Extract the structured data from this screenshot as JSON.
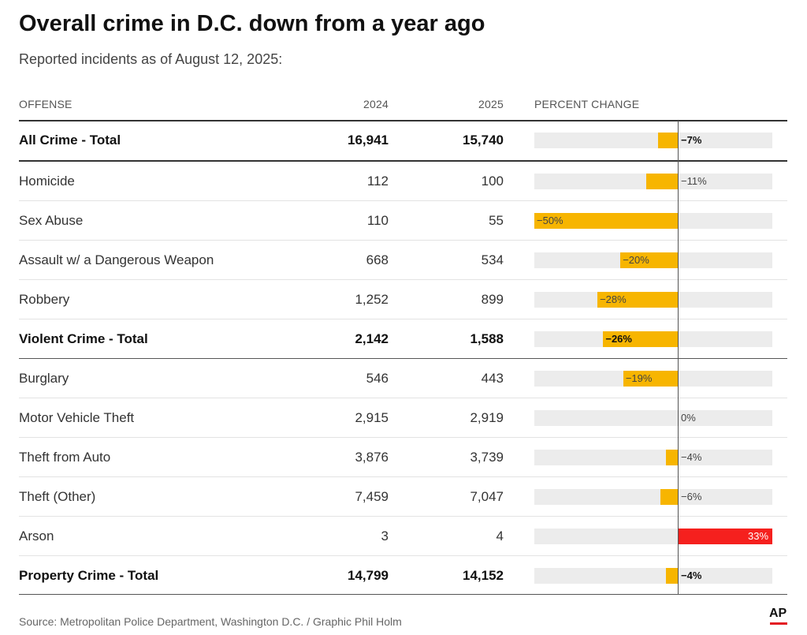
{
  "title": "Overall crime in D.C. down from a year ago",
  "subtitle": "Reported incidents as of August 12, 2025:",
  "headers": {
    "offense": "OFFENSE",
    "y2024": "2024",
    "y2025": "2025",
    "pct": "PERCENT CHANGE"
  },
  "source": "Source: Metropolitan Police Department, Washington D.C. / Graphic Phil Holm",
  "logo_text": "AP",
  "colors": {
    "negative_bar": "#f7b500",
    "positive_bar": "#f5201e",
    "track": "#ececec"
  },
  "chart_data": {
    "type": "table",
    "title": "Overall crime in D.C. down from a year ago",
    "subtitle": "Reported incidents as of August 12, 2025:",
    "columns": [
      "OFFENSE",
      "2024",
      "2025",
      "PERCENT CHANGE"
    ],
    "pct_range": [
      -50,
      33
    ],
    "rows": [
      {
        "offense": "All Crime - Total",
        "y2024": "16,941",
        "y2025": "15,740",
        "pct": -7,
        "pct_label": "−7%",
        "bold": true
      },
      {
        "offense": "Homicide",
        "y2024": "112",
        "y2025": "100",
        "pct": -11,
        "pct_label": "−11%",
        "bold": false
      },
      {
        "offense": "Sex Abuse",
        "y2024": "110",
        "y2025": "55",
        "pct": -50,
        "pct_label": "−50%",
        "bold": false
      },
      {
        "offense": "Assault w/ a Dangerous Weapon",
        "y2024": "668",
        "y2025": "534",
        "pct": -20,
        "pct_label": "−20%",
        "bold": false
      },
      {
        "offense": "Robbery",
        "y2024": "1,252",
        "y2025": "899",
        "pct": -28,
        "pct_label": "−28%",
        "bold": false
      },
      {
        "offense": "Violent Crime - Total",
        "y2024": "2,142",
        "y2025": "1,588",
        "pct": -26,
        "pct_label": "−26%",
        "bold": true
      },
      {
        "offense": "Burglary",
        "y2024": "546",
        "y2025": "443",
        "pct": -19,
        "pct_label": "−19%",
        "bold": false
      },
      {
        "offense": "Motor Vehicle Theft",
        "y2024": "2,915",
        "y2025": "2,919",
        "pct": 0,
        "pct_label": "0%",
        "bold": false
      },
      {
        "offense": "Theft from Auto",
        "y2024": "3,876",
        "y2025": "3,739",
        "pct": -4,
        "pct_label": "−4%",
        "bold": false
      },
      {
        "offense": "Theft (Other)",
        "y2024": "7,459",
        "y2025": "7,047",
        "pct": -6,
        "pct_label": "−6%",
        "bold": false
      },
      {
        "offense": "Arson",
        "y2024": "3",
        "y2025": "4",
        "pct": 33,
        "pct_label": "33%",
        "bold": false
      },
      {
        "offense": "Property Crime - Total",
        "y2024": "14,799",
        "y2025": "14,152",
        "pct": -4,
        "pct_label": "−4%",
        "bold": true
      }
    ]
  }
}
